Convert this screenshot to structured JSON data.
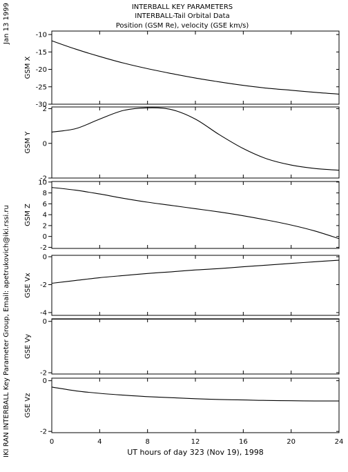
{
  "header": {
    "title_lines": [
      "INTERBALL KEY PARAMETERS",
      "INTERBALL-Tail Orbital Data",
      "Position (GSM Re), velocity (GSE km/s)"
    ],
    "date_label": "Jan 13 1999",
    "credit_label": "IKI RAN INTERBALL Key Parameter Group, Email: apetrukovich@iki.rssi.ru"
  },
  "chart_data": {
    "type": "line",
    "title": "INTERBALL KEY PARAMETERS / INTERBALL-Tail Orbital Data / Position (GSM Re), velocity (GSE km/s)",
    "xlabel": "UT hours of day 323 (Nov 19), 1998",
    "xlim": [
      0,
      24
    ],
    "xticks": [
      0,
      4,
      8,
      12,
      16,
      20,
      24
    ],
    "xtick_labels": [
      "0",
      "4",
      "8",
      "12",
      "16",
      "20",
      "24"
    ],
    "grid": false,
    "x": [
      0,
      2,
      4,
      6,
      8,
      10,
      12,
      14,
      16,
      18,
      20,
      22,
      24
    ],
    "panels": [
      {
        "ylabel": "GSM X",
        "ylim": [
          -30,
          -9
        ],
        "yticks": [
          -30,
          -25,
          -20,
          -15,
          -10
        ],
        "ytick_labels": [
          "-30",
          "-25",
          "-20",
          "-15",
          "-10"
        ],
        "values": [
          -11.8,
          -14.2,
          -16.3,
          -18.2,
          -19.8,
          -21.2,
          -22.5,
          -23.6,
          -24.6,
          -25.4,
          -26.0,
          -26.6,
          -27.1
        ]
      },
      {
        "ylabel": "GSM Y",
        "ylim": [
          -2.0,
          2.1
        ],
        "yticks": [
          -2,
          0,
          2
        ],
        "ytick_labels": [
          "-2",
          "0",
          "2"
        ],
        "values": [
          0.65,
          0.85,
          1.4,
          1.9,
          2.05,
          1.95,
          1.4,
          0.5,
          -0.3,
          -0.9,
          -1.25,
          -1.45,
          -1.55
        ]
      },
      {
        "ylabel": "GSM Z",
        "ylim": [
          -2.2,
          10.1
        ],
        "yticks": [
          -2,
          0,
          2,
          4,
          6,
          8,
          10
        ],
        "ytick_labels": [
          "-2",
          "0",
          "2",
          "4",
          "6",
          "8",
          "10"
        ],
        "values": [
          9.0,
          8.5,
          7.8,
          7.0,
          6.3,
          5.7,
          5.1,
          4.5,
          3.8,
          3.0,
          2.1,
          1.0,
          -0.4
        ]
      },
      {
        "ylabel": "GSE Vx",
        "ylim": [
          -4.2,
          0.1
        ],
        "yticks": [
          -4,
          -2,
          0
        ],
        "ytick_labels": [
          "-4",
          "-2",
          "0"
        ],
        "values": [
          -1.9,
          -1.7,
          -1.5,
          -1.35,
          -1.2,
          -1.08,
          -0.95,
          -0.85,
          -0.72,
          -0.6,
          -0.48,
          -0.36,
          -0.25
        ]
      },
      {
        "ylabel": "GSE Vy",
        "ylim": [
          -2.05,
          0.1
        ],
        "yticks": [
          -2,
          0
        ],
        "ytick_labels": [
          "-2",
          "0"
        ],
        "values": [
          0.09,
          0.09,
          0.09,
          0.09,
          0.09,
          0.09,
          0.09,
          0.09,
          0.09,
          0.09,
          0.09,
          0.09,
          0.09
        ]
      },
      {
        "ylabel": "GSE Vz",
        "ylim": [
          -2.05,
          0.1
        ],
        "yticks": [
          -2,
          0
        ],
        "ytick_labels": [
          "-2",
          "0"
        ],
        "values": [
          -0.25,
          -0.4,
          -0.5,
          -0.57,
          -0.63,
          -0.67,
          -0.71,
          -0.74,
          -0.76,
          -0.78,
          -0.79,
          -0.8,
          -0.8
        ]
      }
    ]
  }
}
